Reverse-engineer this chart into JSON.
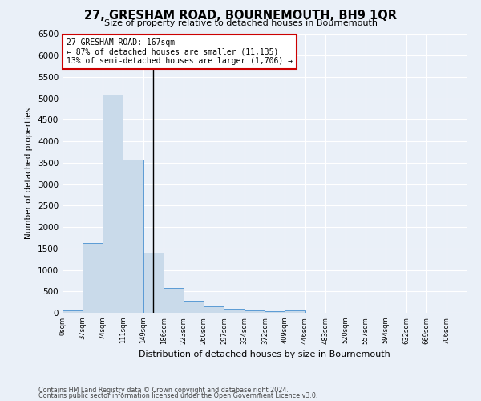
{
  "title": "27, GRESHAM ROAD, BOURNEMOUTH, BH9 1QR",
  "subtitle": "Size of property relative to detached houses in Bournemouth",
  "xlabel": "Distribution of detached houses by size in Bournemouth",
  "ylabel": "Number of detached properties",
  "footnote1": "Contains HM Land Registry data © Crown copyright and database right 2024.",
  "footnote2": "Contains public sector information licensed under the Open Government Licence v3.0.",
  "annotation_title": "27 GRESHAM ROAD: 167sqm",
  "annotation_line1": "← 87% of detached houses are smaller (11,135)",
  "annotation_line2": "13% of semi-detached houses are larger (1,706) →",
  "bar_color": "#c9daea",
  "bar_edge_color": "#5b9bd5",
  "annotation_box_color": "#ffffff",
  "annotation_box_edge": "#cc0000",
  "vline_color": "#000000",
  "background_color": "#eaf0f8",
  "grid_color": "#ffffff",
  "ylim": [
    0,
    6500
  ],
  "yticks": [
    0,
    500,
    1000,
    1500,
    2000,
    2500,
    3000,
    3500,
    4000,
    4500,
    5000,
    5500,
    6000,
    6500
  ],
  "bins": [
    0,
    37,
    74,
    111,
    149,
    186,
    223,
    260,
    297,
    334,
    372,
    409,
    446,
    483,
    520,
    557,
    594,
    632,
    669,
    706,
    743
  ],
  "values": [
    50,
    1620,
    5080,
    3580,
    1400,
    580,
    285,
    155,
    100,
    60,
    35,
    55,
    0,
    0,
    0,
    0,
    0,
    0,
    0,
    0
  ],
  "property_sqm": 167,
  "figsize": [
    6.0,
    5.0
  ],
  "dpi": 100
}
